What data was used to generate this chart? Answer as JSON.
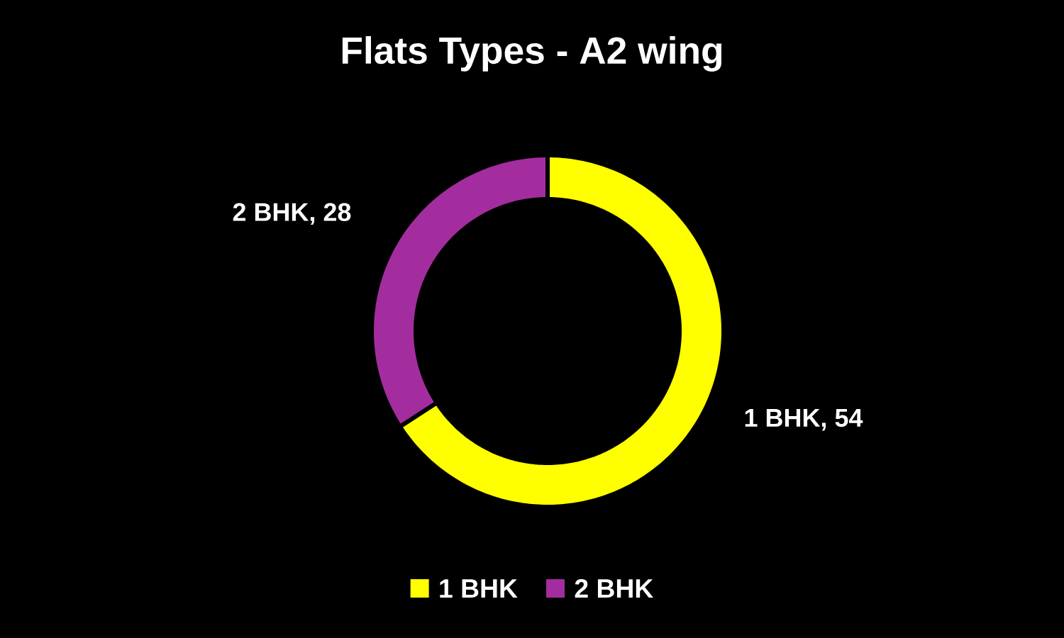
{
  "chart_data": {
    "type": "donut",
    "title": "Flats Types - A2 wing",
    "categories": [
      "1 BHK",
      "2 BHK"
    ],
    "values": [
      54,
      28
    ],
    "colors": [
      "#ffff00",
      "#a32d9e"
    ],
    "value_labels": [
      "1 BHK, 54",
      "2 BHK, 28"
    ],
    "legend": "bottom"
  }
}
